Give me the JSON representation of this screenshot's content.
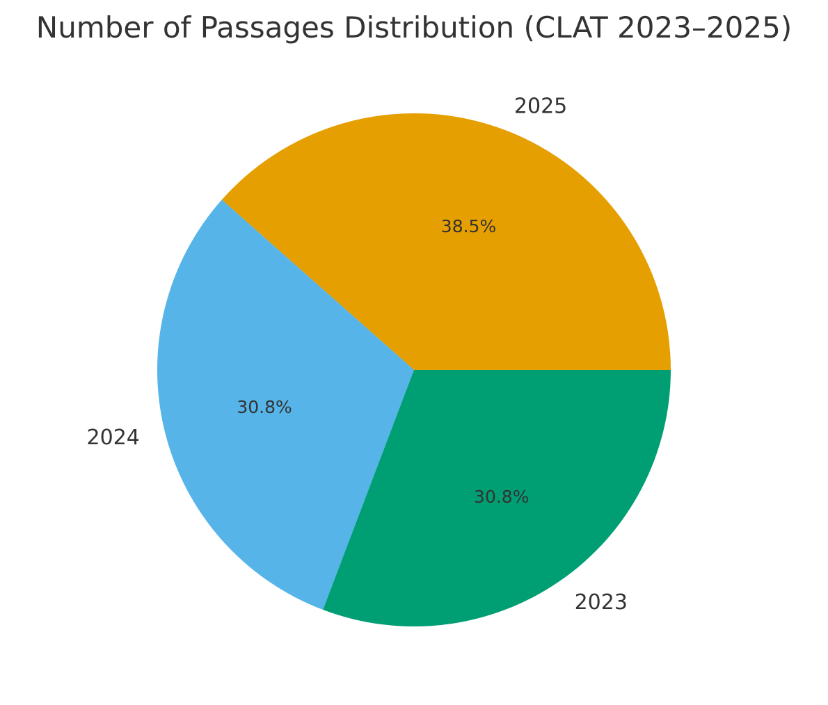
{
  "chart_data": {
    "type": "pie",
    "title": "Number of Passages Distribution (CLAT 2023–2025)",
    "labels": [
      "2025",
      "2024",
      "2023"
    ],
    "values": [
      5,
      4,
      4
    ],
    "percent_labels": [
      "38.5%",
      "30.8%",
      "30.8%"
    ],
    "colors": [
      "#E69F00",
      "#56B4E9",
      "#009E73"
    ],
    "start_angle": 0,
    "direction": "counterclockwise"
  }
}
